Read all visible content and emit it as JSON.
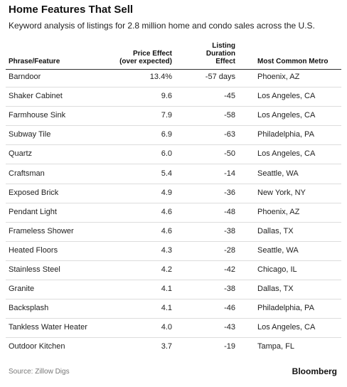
{
  "header": {
    "title": "Home Features That Sell",
    "subtitle": "Keyword analysis of listings for 2.8 million home and condo sales across the U.S."
  },
  "table": {
    "columns": [
      [
        "Phrase/Feature"
      ],
      [
        "Price Effect",
        "(over expected)"
      ],
      [
        "Listing",
        "Duration",
        "Effect"
      ],
      [
        "Most Common Metro"
      ]
    ],
    "rows": [
      [
        "Barndoor",
        "13.4%",
        "-57 days",
        "Phoenix, AZ"
      ],
      [
        "Shaker Cabinet",
        "9.6",
        "-45",
        "Los Angeles, CA"
      ],
      [
        "Farmhouse Sink",
        "7.9",
        "-58",
        "Los Angeles, CA"
      ],
      [
        "Subway Tile",
        "6.9",
        "-63",
        "Philadelphia, PA"
      ],
      [
        "Quartz",
        "6.0",
        "-50",
        "Los Angeles, CA"
      ],
      [
        "Craftsman",
        "5.4",
        "-14",
        "Seattle, WA"
      ],
      [
        "Exposed Brick",
        "4.9",
        "-36",
        "New York, NY"
      ],
      [
        "Pendant Light",
        "4.6",
        "-48",
        "Phoenix, AZ"
      ],
      [
        "Frameless Shower",
        "4.6",
        "-38",
        "Dallas, TX"
      ],
      [
        "Heated Floors",
        "4.3",
        "-28",
        "Seattle, WA"
      ],
      [
        "Stainless Steel",
        "4.2",
        "-42",
        "Chicago, IL"
      ],
      [
        "Granite",
        "4.1",
        "-38",
        "Dallas, TX"
      ],
      [
        "Backsplash",
        "4.1",
        "-46",
        "Philadelphia, PA"
      ],
      [
        "Tankless Water Heater",
        "4.0",
        "-43",
        "Los Angeles, CA"
      ],
      [
        "Outdoor Kitchen",
        "3.7",
        "-19",
        "Tampa, FL"
      ]
    ]
  },
  "footer": {
    "source": "Source: Zillow Digs",
    "brand": "Bloomberg"
  }
}
